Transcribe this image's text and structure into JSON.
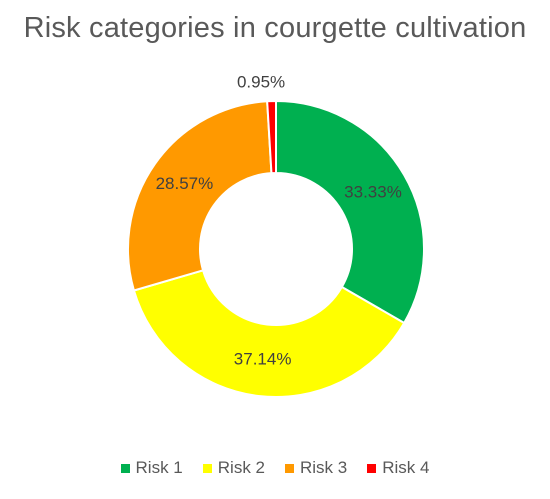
{
  "chart_data": {
    "type": "pie",
    "donut": true,
    "title": "Risk categories in courgette cultivation",
    "categories": [
      "Risk 1",
      "Risk 2",
      "Risk 3",
      "Risk 4"
    ],
    "values": [
      33.33,
      37.14,
      28.57,
      0.95
    ],
    "labels": [
      "33.33%",
      "37.14%",
      "28.57%",
      "0.95%"
    ],
    "colors": [
      "#00B050",
      "#FFFF00",
      "#FF9900",
      "#FF0000"
    ],
    "legend_position": "bottom"
  }
}
